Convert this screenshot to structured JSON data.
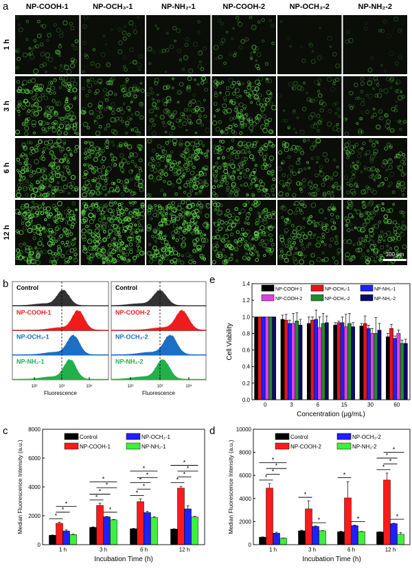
{
  "panel_labels": {
    "a": "a",
    "b": "b",
    "c": "c",
    "d": "d",
    "e": "e"
  },
  "panel_a": {
    "columns": [
      "NP-COOH-1",
      "NP-OCH₃-1",
      "NP-NH₂-1",
      "NP-COOH-2",
      "NP-OCH₃-2",
      "NP-NH₂-2"
    ],
    "rows": [
      "1 h",
      "3 h",
      "6 h",
      "12 h"
    ],
    "scale_bar": "100 μm",
    "colors": {
      "background": "#0a0d08",
      "signal": "#5fd64a"
    }
  },
  "panel_b": {
    "xlabel": "Fluorescence",
    "ticks": [
      "10²",
      "10³",
      "10⁴"
    ],
    "left": [
      {
        "label": "Control",
        "color": "#333333",
        "peak_log": 3.05
      },
      {
        "label": "NP-COOH-1",
        "color": "#ee1c1c",
        "peak_log": 3.6
      },
      {
        "label": "NP-OCH₃-1",
        "color": "#1c6fc4",
        "peak_log": 3.42
      },
      {
        "label": "NP-NH₂-1",
        "color": "#22b04a",
        "peak_log": 3.3
      }
    ],
    "right": [
      {
        "label": "Control",
        "color": "#333333",
        "peak_log": 3.0
      },
      {
        "label": "NP-COOH-2",
        "color": "#ee1c1c",
        "peak_log": 3.75
      },
      {
        "label": "NP-OCH₃-2",
        "color": "#1c6fc4",
        "peak_log": 3.35
      },
      {
        "label": "NP-NH₂-2",
        "color": "#22b04a",
        "peak_log": 3.1
      }
    ]
  },
  "chart_data": [
    {
      "id": "c",
      "type": "bar",
      "title": "",
      "xlabel": "Incubation Time (h)",
      "ylabel": "Median Fluorescence Intensity (a.u.)",
      "ylim": [
        0,
        8000
      ],
      "yticks": [
        "0",
        "2000",
        "4000",
        "6000",
        "8000"
      ],
      "categories": [
        "1 h",
        "3 h",
        "6 h",
        "12 h"
      ],
      "series": [
        {
          "name": "Control",
          "color": "#000000",
          "values": [
            650,
            1200,
            1100,
            1080
          ],
          "errors": [
            20,
            30,
            30,
            20
          ]
        },
        {
          "name": "NP-COOH-1",
          "color": "#ff1a1a",
          "values": [
            1480,
            2720,
            2980,
            3920
          ],
          "errors": [
            80,
            150,
            180,
            120
          ]
        },
        {
          "name": "NP-OCH₃-1",
          "color": "#1f1fff",
          "values": [
            950,
            1930,
            2230,
            2480
          ],
          "errors": [
            80,
            30,
            80,
            220
          ]
        },
        {
          "name": "NP-NH₂-1",
          "color": "#3cf03c",
          "values": [
            700,
            1720,
            1880,
            1920
          ],
          "errors": [
            30,
            30,
            60,
            40
          ]
        }
      ],
      "significance": [
        {
          "group": 0,
          "from": 0,
          "to": 1,
          "y": 1800,
          "mark": "*"
        },
        {
          "group": 0,
          "from": 1,
          "to": 2,
          "y": 2250,
          "mark": "*"
        },
        {
          "group": 0,
          "from": 1,
          "to": 3,
          "y": 2650,
          "mark": "*"
        },
        {
          "group": 1,
          "from": 0,
          "to": 1,
          "y": 3100,
          "mark": "*"
        },
        {
          "group": 1,
          "from": 0,
          "to": 2,
          "y": 3500,
          "mark": "*"
        },
        {
          "group": 1,
          "from": 1,
          "to": 3,
          "y": 3950,
          "mark": "*"
        },
        {
          "group": 1,
          "from": 0,
          "to": 3,
          "y": 4350,
          "mark": "*"
        },
        {
          "group": 1,
          "from": 2,
          "to": 3,
          "y": 2250,
          "mark": "*"
        },
        {
          "group": 2,
          "from": 0,
          "to": 1,
          "y": 3400,
          "mark": "*"
        },
        {
          "group": 2,
          "from": 1,
          "to": 2,
          "y": 3850,
          "mark": "*"
        },
        {
          "group": 2,
          "from": 0,
          "to": 2,
          "y": 4300,
          "mark": "*"
        },
        {
          "group": 2,
          "from": 1,
          "to": 3,
          "y": 4650,
          "mark": "*"
        },
        {
          "group": 2,
          "from": 0,
          "to": 3,
          "y": 5100,
          "mark": "*"
        },
        {
          "group": 3,
          "from": 0,
          "to": 1,
          "y": 4300,
          "mark": "*"
        },
        {
          "group": 3,
          "from": 1,
          "to": 2,
          "y": 4700,
          "mark": "*"
        },
        {
          "group": 3,
          "from": 1,
          "to": 3,
          "y": 5100,
          "mark": "*"
        },
        {
          "group": 3,
          "from": 0,
          "to": 3,
          "y": 5500,
          "mark": "*"
        }
      ],
      "legend": "top"
    },
    {
      "id": "d",
      "type": "bar",
      "title": "",
      "xlabel": "Incubation Time (h)",
      "ylabel": "Median Fluorescence Intensity (a.u.)",
      "ylim": [
        0,
        10000
      ],
      "yticks": [
        "0",
        "2000",
        "4000",
        "6000",
        "8000",
        "10000"
      ],
      "categories": [
        "1 h",
        "3 h",
        "6 h",
        "12 h"
      ],
      "series": [
        {
          "name": "Control",
          "color": "#000000",
          "values": [
            650,
            1200,
            1120,
            1100
          ],
          "errors": [
            20,
            50,
            40,
            20
          ]
        },
        {
          "name": "NP-COOH-2",
          "color": "#ff1a1a",
          "values": [
            4900,
            3100,
            4050,
            5600
          ],
          "errors": [
            400,
            700,
            1400,
            600
          ]
        },
        {
          "name": "NP-OCH₃-2",
          "color": "#1f1fff",
          "values": [
            1000,
            1580,
            1650,
            1820
          ],
          "errors": [
            80,
            40,
            50,
            40
          ]
        },
        {
          "name": "NP-NH₂-2",
          "color": "#3cf03c",
          "values": [
            560,
            1200,
            1130,
            900
          ],
          "errors": [
            20,
            20,
            20,
            150
          ]
        }
      ],
      "significance": [
        {
          "group": 0,
          "from": 0,
          "to": 1,
          "y": 5600,
          "mark": "*"
        },
        {
          "group": 0,
          "from": 1,
          "to": 2,
          "y": 6100,
          "mark": "*"
        },
        {
          "group": 0,
          "from": 1,
          "to": 3,
          "y": 6600,
          "mark": "*"
        },
        {
          "group": 0,
          "from": 0,
          "to": 3,
          "y": 7100,
          "mark": "*"
        },
        {
          "group": 1,
          "from": 0,
          "to": 1,
          "y": 4100,
          "mark": "*"
        },
        {
          "group": 1,
          "from": 2,
          "to": 3,
          "y": 1900,
          "mark": "*"
        },
        {
          "group": 2,
          "from": 0,
          "to": 1,
          "y": 5800,
          "mark": "*"
        },
        {
          "group": 2,
          "from": 2,
          "to": 3,
          "y": 2000,
          "mark": "*"
        },
        {
          "group": 3,
          "from": 0,
          "to": 1,
          "y": 6500,
          "mark": "*"
        },
        {
          "group": 3,
          "from": 1,
          "to": 2,
          "y": 7000,
          "mark": "*"
        },
        {
          "group": 3,
          "from": 0,
          "to": 2,
          "y": 7500,
          "mark": "*"
        },
        {
          "group": 3,
          "from": 1,
          "to": 3,
          "y": 8000,
          "mark": "*"
        },
        {
          "group": 3,
          "from": 2,
          "to": 3,
          "y": 2200,
          "mark": "*"
        }
      ],
      "legend": "top"
    },
    {
      "id": "e",
      "type": "bar",
      "title": "",
      "xlabel": "Concentration (μg/mL)",
      "ylabel": "Cell Viability",
      "ylim": [
        0,
        1.4
      ],
      "yticks": [
        "0.0",
        "0.2",
        "0.4",
        "0.6",
        "0.8",
        "1.0",
        "1.2",
        "1.4"
      ],
      "categories": [
        "0",
        "3",
        "6",
        "15",
        "30",
        "60"
      ],
      "series": [
        {
          "name": "NP-COOH-1",
          "color": "#000000",
          "values": [
            1.0,
            0.97,
            0.92,
            0.9,
            0.89,
            0.76
          ],
          "errors": [
            0,
            0.05,
            0.08,
            0.03,
            0.03,
            0.04
          ]
        },
        {
          "name": "NP-OCH₃-1",
          "color": "#e8141b",
          "values": [
            1.0,
            0.96,
            0.96,
            0.93,
            0.92,
            0.86
          ],
          "errors": [
            0,
            0.07,
            0.04,
            0.02,
            0.09,
            0.05
          ]
        },
        {
          "name": "NP-NH₂-1",
          "color": "#2020ff",
          "values": [
            1.0,
            0.92,
            0.97,
            0.93,
            0.86,
            0.74
          ],
          "errors": [
            0,
            0.04,
            0.11,
            0.07,
            0.04,
            0.03
          ]
        },
        {
          "name": "NP-COOH-2",
          "color": "#e040e0",
          "values": [
            1.0,
            0.92,
            0.87,
            0.88,
            0.8,
            0.8
          ],
          "errors": [
            0,
            0.12,
            0.13,
            0.15,
            0.06,
            0.04
          ]
        },
        {
          "name": "NP-OCH₃-2",
          "color": "#1e8c2a",
          "values": [
            1.0,
            0.95,
            0.92,
            0.92,
            0.8,
            0.68
          ],
          "errors": [
            0,
            0.1,
            0.12,
            0.12,
            0.19,
            0.04
          ]
        },
        {
          "name": "NP-NH₂-2",
          "color": "#0a0a6e",
          "values": [
            1.0,
            0.9,
            0.93,
            0.88,
            0.84,
            0.68
          ],
          "errors": [
            0,
            0.07,
            0.08,
            0.05,
            0.08,
            0.05
          ]
        }
      ],
      "significance": [],
      "legend": "top"
    }
  ]
}
